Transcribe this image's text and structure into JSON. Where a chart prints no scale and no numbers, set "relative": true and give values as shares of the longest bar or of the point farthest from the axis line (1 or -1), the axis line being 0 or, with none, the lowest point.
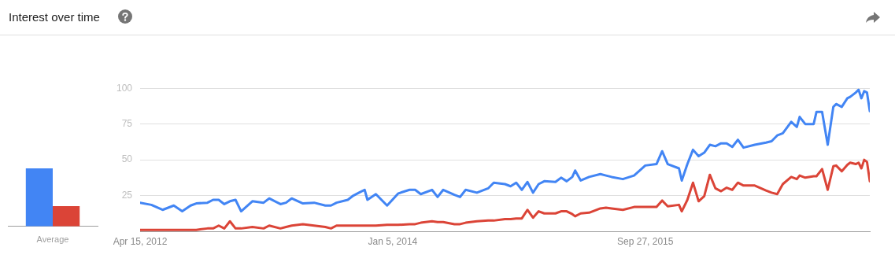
{
  "chart_data": [
    {
      "type": "bar",
      "relative": true,
      "categories": [
        "Average"
      ],
      "series": [
        {
          "color": "#4285f4",
          "values": [
            1
          ]
        },
        {
          "color": "#db4437",
          "values": [
            0.35
          ]
        }
      ],
      "legend": false,
      "grid": false
    },
    {
      "type": "line",
      "title": "Interest over time",
      "x": [
        "2012-04-15",
        "2012-05-13",
        "2012-06-10",
        "2012-07-08",
        "2012-07-29",
        "2012-08-19",
        "2012-09-02",
        "2012-09-30",
        "2012-10-14",
        "2012-10-28",
        "2012-11-11",
        "2012-11-25",
        "2012-12-09",
        "2012-12-23",
        "2013-01-20",
        "2013-02-17",
        "2013-03-03",
        "2013-03-31",
        "2013-04-14",
        "2013-04-28",
        "2013-05-26",
        "2013-06-23",
        "2013-07-21",
        "2013-08-04",
        "2013-08-18",
        "2013-09-15",
        "2013-09-29",
        "2013-10-13",
        "2013-10-27",
        "2013-11-03",
        "2013-11-24",
        "2013-12-22",
        "2014-01-19",
        "2014-02-16",
        "2014-03-02",
        "2014-03-16",
        "2014-04-13",
        "2014-04-27",
        "2014-05-11",
        "2014-06-08",
        "2014-06-22",
        "2014-07-06",
        "2014-08-03",
        "2014-08-31",
        "2014-09-14",
        "2014-10-12",
        "2014-10-26",
        "2014-11-09",
        "2014-11-23",
        "2014-12-07",
        "2014-12-21",
        "2015-01-04",
        "2015-01-18",
        "2015-02-15",
        "2015-03-01",
        "2015-03-15",
        "2015-03-29",
        "2015-04-05",
        "2015-04-19",
        "2015-05-10",
        "2015-06-07",
        "2015-06-21",
        "2015-07-05",
        "2015-08-02",
        "2015-08-30",
        "2015-09-27",
        "2015-10-25",
        "2015-11-08",
        "2015-11-22",
        "2015-12-20",
        "2015-12-27",
        "2016-01-10",
        "2016-01-24",
        "2016-02-07",
        "2016-02-21",
        "2016-03-06",
        "2016-03-20",
        "2016-04-03",
        "2016-04-17",
        "2016-05-01",
        "2016-05-15",
        "2016-05-29",
        "2016-06-26",
        "2016-07-24",
        "2016-08-07",
        "2016-08-21",
        "2016-09-04",
        "2016-09-25",
        "2016-10-09",
        "2016-10-16",
        "2016-10-30",
        "2016-11-20",
        "2016-11-27",
        "2016-12-11",
        "2016-12-25",
        "2017-01-08",
        "2017-01-15",
        "2017-01-29",
        "2017-02-12",
        "2017-02-19",
        "2017-03-05",
        "2017-03-12",
        "2017-03-19",
        "2017-03-26",
        "2017-04-02",
        "2017-04-09"
      ],
      "series": [
        {
          "color": "#4285f4",
          "values": [
            20,
            18.5,
            15,
            18,
            14,
            18,
            19.5,
            20,
            22,
            22,
            19,
            21,
            22,
            14,
            21,
            20,
            23,
            19,
            20,
            23,
            19.5,
            20,
            18,
            18,
            20,
            22,
            25,
            27,
            29,
            22,
            26,
            18,
            26.5,
            29,
            29,
            26,
            29,
            24,
            29,
            25.5,
            24,
            29,
            27,
            30,
            34,
            33,
            31.5,
            34,
            29,
            34.5,
            27,
            33,
            35,
            34.5,
            37.5,
            35,
            38,
            42.5,
            35.5,
            38,
            40,
            39,
            38,
            36.5,
            39,
            46,
            47,
            56,
            47,
            44,
            35.5,
            47,
            57,
            52.5,
            55,
            60.5,
            59.5,
            61.5,
            61.5,
            59,
            64,
            58.5,
            60.5,
            62,
            63,
            67,
            68.5,
            76.5,
            73,
            80,
            75,
            75,
            83.5,
            83.5,
            60.5,
            87,
            89,
            87,
            93,
            94,
            97,
            99,
            93,
            98,
            97,
            84
          ]
        },
        {
          "color": "#db4437",
          "values": [
            1,
            1,
            1,
            1,
            1,
            1,
            1,
            2,
            2,
            4,
            2,
            7,
            2,
            2,
            3,
            2,
            4,
            2,
            3,
            4,
            5,
            4,
            3,
            2,
            4,
            4,
            4,
            4,
            4,
            4,
            4,
            4.5,
            4.5,
            5,
            5,
            6,
            7,
            6.5,
            6.5,
            5,
            5,
            6,
            7,
            7.5,
            7.5,
            8.5,
            8.5,
            9,
            9,
            15,
            9.5,
            14,
            12.5,
            12.5,
            14,
            14,
            12,
            10.5,
            12.5,
            13,
            16,
            16.5,
            16,
            15,
            17,
            17,
            17,
            21.5,
            17.5,
            18.5,
            14,
            22,
            34,
            21,
            24.5,
            39.5,
            30,
            28,
            30.5,
            29,
            34,
            32,
            32,
            28.5,
            27,
            26,
            33,
            38,
            36.5,
            39,
            37.5,
            38.5,
            38.5,
            43.5,
            29,
            45.5,
            46,
            42,
            46.5,
            48,
            47,
            48,
            44,
            50,
            48.5,
            35
          ]
        }
      ],
      "xlim": [
        "2012-04-15",
        "2017-04-09"
      ],
      "xticks": [
        {
          "value": "2012-04-15",
          "label": "Apr 15, 2012"
        },
        {
          "value": "2014-01-05",
          "label": "Jan 5, 2014"
        },
        {
          "value": "2015-09-27",
          "label": "Sep 27, 2015"
        }
      ],
      "ylim": [
        0,
        100
      ],
      "yticks": [
        25,
        50,
        75,
        100
      ],
      "grid": "y",
      "legend": false,
      "line_style": "solid"
    }
  ]
}
